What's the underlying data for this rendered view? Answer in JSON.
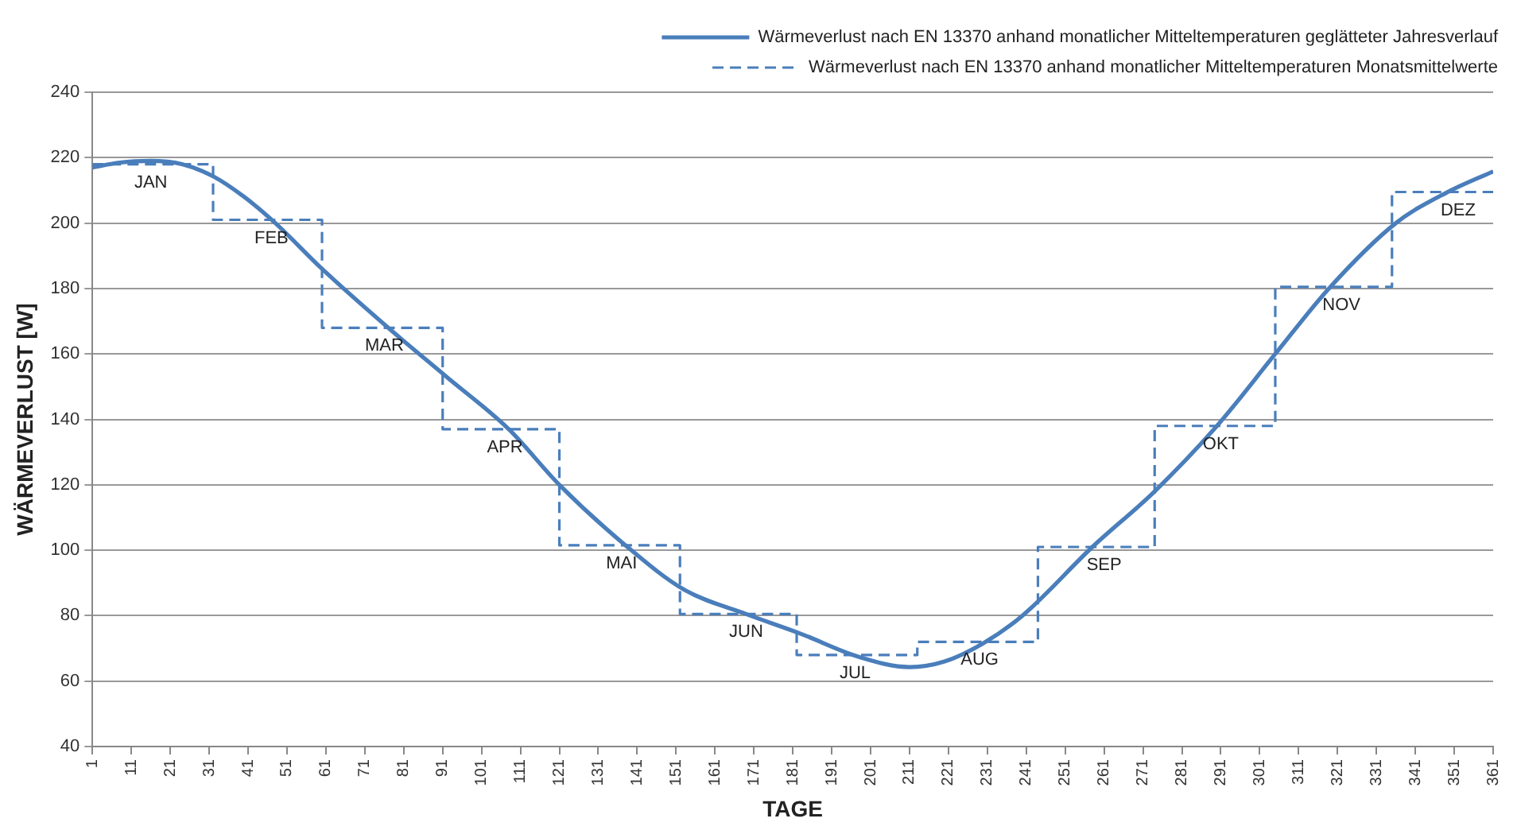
{
  "chart_data": {
    "type": "line",
    "xlabel": "TAGE",
    "ylabel": "WÄRMEVERLUST [W]",
    "xlim": [
      1,
      361
    ],
    "xticks": [
      1,
      11,
      21,
      31,
      41,
      51,
      61,
      71,
      81,
      91,
      101,
      111,
      121,
      131,
      141,
      151,
      161,
      171,
      181,
      191,
      201,
      211,
      221,
      231,
      241,
      251,
      261,
      271,
      281,
      291,
      301,
      311,
      321,
      331,
      341,
      351,
      361
    ],
    "ylim": [
      40,
      240
    ],
    "yticks": [
      40,
      60,
      80,
      100,
      120,
      140,
      160,
      180,
      200,
      220,
      240
    ],
    "grid": "y",
    "legend": "top right",
    "marker": "none",
    "series": [
      {
        "name": "Wärmeverlust nach EN 13370 anhand monatlicher Mitteltemperaturen geglätteter Jahresverlauf",
        "type": "line",
        "line_style": "solid",
        "color": "#4a7ebb",
        "x": [
          1,
          8,
          16,
          24,
          32,
          40,
          48,
          60,
          77,
          92,
          108,
          121,
          138,
          153,
          169,
          183,
          198,
          211,
          220,
          230,
          240,
          258,
          274,
          290,
          305,
          319,
          336,
          349,
          361
        ],
        "values": [
          217,
          218.5,
          219,
          218,
          214.3,
          208,
          200,
          186,
          168,
          153,
          137,
          120,
          101.5,
          88,
          80.5,
          74.5,
          67.4,
          64.3,
          66,
          71.6,
          80,
          101,
          118,
          138,
          160,
          180.3,
          200,
          209.3,
          215.8
        ]
      },
      {
        "name": "Wärmeverlust nach EN 13370 anhand monatlicher Mitteltemperaturen Monatsmittelwerte",
        "type": "step",
        "line_style": "dashed",
        "color": "#4a7ebb",
        "x": [
          1,
          32,
          60,
          91,
          121,
          152,
          182,
          213,
          244,
          274,
          305,
          335,
          361
        ],
        "values": [
          218,
          201,
          168,
          137,
          101.5,
          80.5,
          68,
          72,
          101,
          138,
          180.5,
          209.5,
          209.5
        ]
      }
    ],
    "annotations": [
      {
        "text": "JAN",
        "x": 16,
        "y": 218
      },
      {
        "text": "FEB",
        "x": 47,
        "y": 201
      },
      {
        "text": "MAR",
        "x": 76,
        "y": 168
      },
      {
        "text": "APR",
        "x": 107,
        "y": 137
      },
      {
        "text": "MAI",
        "x": 137,
        "y": 101.5
      },
      {
        "text": "JUN",
        "x": 169,
        "y": 80.5
      },
      {
        "text": "JUL",
        "x": 197,
        "y": 68
      },
      {
        "text": "AUG",
        "x": 229,
        "y": 72
      },
      {
        "text": "SEP",
        "x": 261,
        "y": 101
      },
      {
        "text": "OKT",
        "x": 291,
        "y": 138
      },
      {
        "text": "NOV",
        "x": 322,
        "y": 180.5
      },
      {
        "text": "DEZ",
        "x": 352,
        "y": 209.5
      }
    ]
  }
}
